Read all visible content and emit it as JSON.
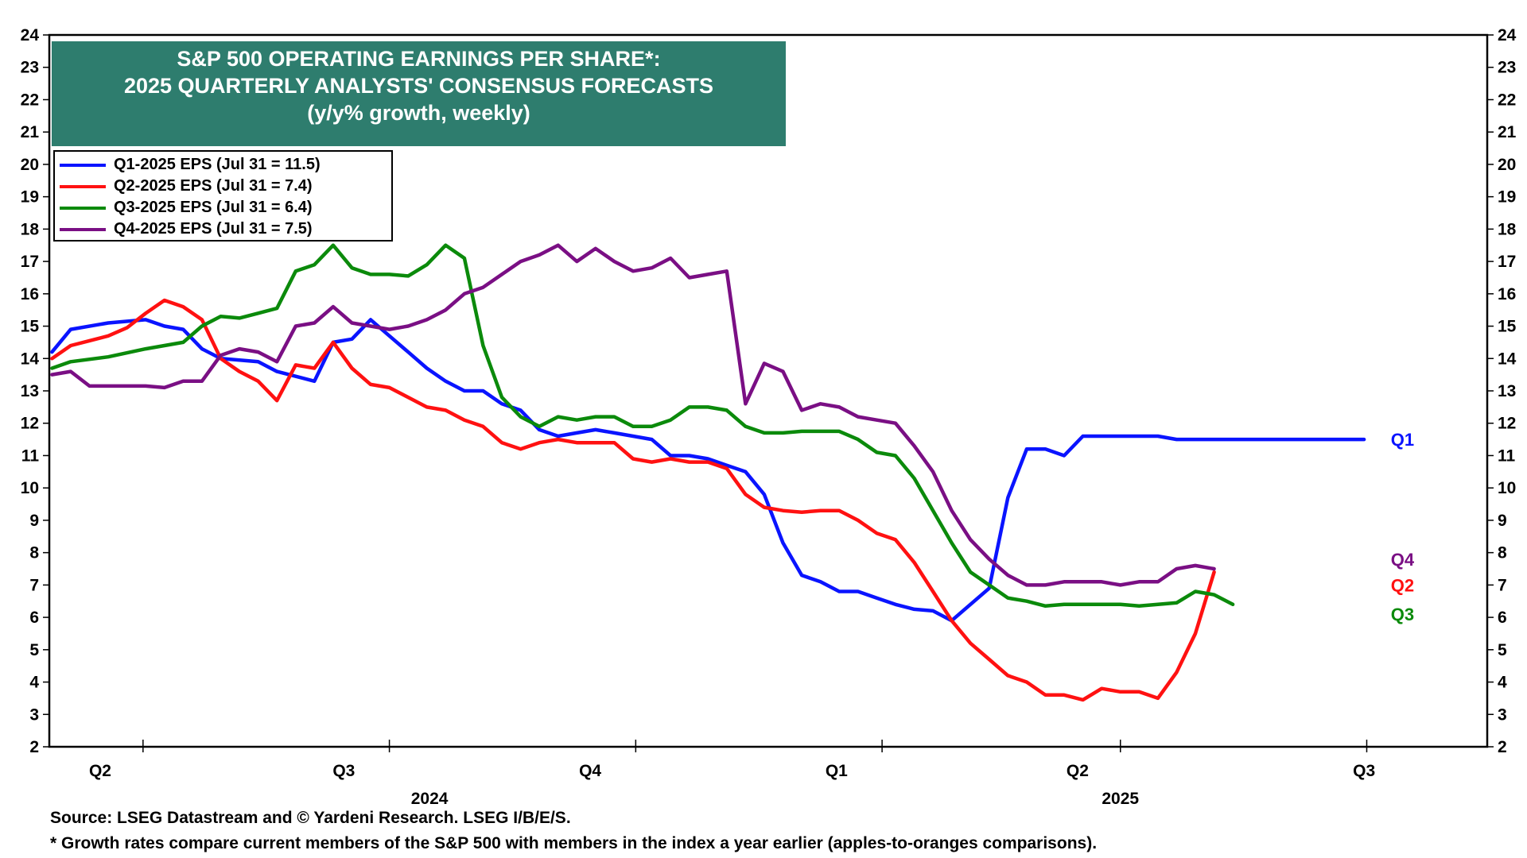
{
  "title": {
    "line1": "S&P 500 OPERATING EARNINGS PER SHARE*:",
    "line2": "2025 QUARTERLY ANALYSTS' CONSENSUS FORECASTS",
    "line3": "(y/y% growth, weekly)"
  },
  "footnotes": {
    "source": "Source: LSEG Datastream and © Yardeni Research. LSEG I/B/E/S.",
    "note": "* Growth rates compare current members of the S&P 500 with members in the index a year earlier (apples-to-oranges comparisons)."
  },
  "chart_data": {
    "type": "line",
    "ylim": [
      2,
      24
    ],
    "y_ticks": [
      2,
      3,
      4,
      5,
      6,
      7,
      8,
      9,
      10,
      11,
      12,
      13,
      14,
      15,
      16,
      17,
      18,
      19,
      20,
      21,
      22,
      23,
      24
    ],
    "xlim": [
      "2024-03-27",
      "2025-09-15"
    ],
    "x_tick_labels": [
      {
        "label": "Q2",
        "date": "2024-04-15"
      },
      {
        "label": "Q3",
        "date": "2024-07-15"
      },
      {
        "label": "Q4",
        "date": "2024-10-15"
      },
      {
        "label": "Q1",
        "date": "2025-01-15"
      },
      {
        "label": "Q2",
        "date": "2025-04-15"
      },
      {
        "label": "Q3",
        "date": "2025-07-31"
      }
    ],
    "year_labels": [
      {
        "label": "2024",
        "date": "2024-08-16"
      },
      {
        "label": "2025",
        "date": "2025-05-01"
      }
    ],
    "month_tick_dates": [
      "2024-05-01",
      "2024-08-01",
      "2024-11-01",
      "2025-02-01",
      "2025-05-01",
      "2025-08-01"
    ],
    "grid": false,
    "legend": "top-left",
    "colors": {
      "Q1": "#0a14ff",
      "Q2": "#ff1111",
      "Q3": "#0b8a0b",
      "Q4": "#7a0f84"
    },
    "series": [
      {
        "name": "Q1-2025 EPS (Jul 31 = 11.5)",
        "end_label": "Q1",
        "color": "#0a14ff",
        "points": [
          [
            "2024-03-28",
            14.2
          ],
          [
            "2024-04-04",
            14.9
          ],
          [
            "2024-04-18",
            15.1
          ],
          [
            "2024-05-02",
            15.2
          ],
          [
            "2024-05-09",
            15.0
          ],
          [
            "2024-05-16",
            14.9
          ],
          [
            "2024-05-23",
            14.3
          ],
          [
            "2024-05-30",
            14.0
          ],
          [
            "2024-06-13",
            13.9
          ],
          [
            "2024-06-20",
            13.6
          ],
          [
            "2024-07-04",
            13.3
          ],
          [
            "2024-07-11",
            14.5
          ],
          [
            "2024-07-18",
            14.6
          ],
          [
            "2024-07-25",
            15.2
          ],
          [
            "2024-08-01",
            14.7
          ],
          [
            "2024-08-08",
            14.2
          ],
          [
            "2024-08-15",
            13.7
          ],
          [
            "2024-08-22",
            13.3
          ],
          [
            "2024-08-29",
            13.0
          ],
          [
            "2024-09-05",
            13.0
          ],
          [
            "2024-09-12",
            12.6
          ],
          [
            "2024-09-19",
            12.4
          ],
          [
            "2024-09-26",
            11.8
          ],
          [
            "2024-10-03",
            11.6
          ],
          [
            "2024-10-10",
            11.7
          ],
          [
            "2024-10-17",
            11.8
          ],
          [
            "2024-10-24",
            11.7
          ],
          [
            "2024-10-31",
            11.6
          ],
          [
            "2024-11-07",
            11.5
          ],
          [
            "2024-11-14",
            11.0
          ],
          [
            "2024-11-21",
            11.0
          ],
          [
            "2024-11-28",
            10.9
          ],
          [
            "2024-12-05",
            10.7
          ],
          [
            "2024-12-12",
            10.5
          ],
          [
            "2024-12-19",
            9.8
          ],
          [
            "2024-12-26",
            8.3
          ],
          [
            "2025-01-02",
            7.3
          ],
          [
            "2025-01-09",
            7.1
          ],
          [
            "2025-01-16",
            6.8
          ],
          [
            "2025-01-23",
            6.8
          ],
          [
            "2025-01-30",
            6.6
          ],
          [
            "2025-02-06",
            6.4
          ],
          [
            "2025-02-13",
            6.25
          ],
          [
            "2025-02-20",
            6.2
          ],
          [
            "2025-02-27",
            5.9
          ],
          [
            "2025-03-06",
            6.4
          ],
          [
            "2025-03-13",
            6.9
          ],
          [
            "2025-03-20",
            9.7
          ],
          [
            "2025-03-27",
            11.2
          ],
          [
            "2025-04-03",
            11.2
          ],
          [
            "2025-04-10",
            11.0
          ],
          [
            "2025-04-17",
            11.6
          ],
          [
            "2025-04-24",
            11.6
          ],
          [
            "2025-05-01",
            11.6
          ],
          [
            "2025-05-08",
            11.6
          ],
          [
            "2025-05-15",
            11.6
          ],
          [
            "2025-05-22",
            11.5
          ],
          [
            "2025-05-29",
            11.5
          ],
          [
            "2025-06-05",
            11.5
          ],
          [
            "2025-06-12",
            11.5
          ],
          [
            "2025-06-19",
            11.5
          ],
          [
            "2025-06-26",
            11.5
          ],
          [
            "2025-07-03",
            11.5
          ],
          [
            "2025-07-10",
            11.5
          ],
          [
            "2025-07-17",
            11.5
          ],
          [
            "2025-07-24",
            11.5
          ],
          [
            "2025-07-31",
            11.5
          ]
        ]
      },
      {
        "name": "Q2-2025 EPS (Jul 31 = 7.4)",
        "end_label": "Q2",
        "color": "#ff1111",
        "points": [
          [
            "2024-03-28",
            14.0
          ],
          [
            "2024-04-04",
            14.4
          ],
          [
            "2024-04-11",
            14.55
          ],
          [
            "2024-04-18",
            14.7
          ],
          [
            "2024-04-25",
            14.95
          ],
          [
            "2024-05-02",
            15.4
          ],
          [
            "2024-05-09",
            15.8
          ],
          [
            "2024-05-16",
            15.6
          ],
          [
            "2024-05-23",
            15.2
          ],
          [
            "2024-05-30",
            14.0
          ],
          [
            "2024-06-06",
            13.6
          ],
          [
            "2024-06-13",
            13.3
          ],
          [
            "2024-06-20",
            12.7
          ],
          [
            "2024-06-27",
            13.8
          ],
          [
            "2024-07-04",
            13.7
          ],
          [
            "2024-07-11",
            14.5
          ],
          [
            "2024-07-18",
            13.7
          ],
          [
            "2024-07-25",
            13.2
          ],
          [
            "2024-08-01",
            13.1
          ],
          [
            "2024-08-08",
            12.8
          ],
          [
            "2024-08-15",
            12.5
          ],
          [
            "2024-08-22",
            12.4
          ],
          [
            "2024-08-29",
            12.1
          ],
          [
            "2024-09-05",
            11.9
          ],
          [
            "2024-09-12",
            11.4
          ],
          [
            "2024-09-19",
            11.2
          ],
          [
            "2024-09-26",
            11.4
          ],
          [
            "2024-10-03",
            11.5
          ],
          [
            "2024-10-10",
            11.4
          ],
          [
            "2024-10-17",
            11.4
          ],
          [
            "2024-10-24",
            11.4
          ],
          [
            "2024-10-31",
            10.9
          ],
          [
            "2024-11-07",
            10.8
          ],
          [
            "2024-11-14",
            10.9
          ],
          [
            "2024-11-21",
            10.8
          ],
          [
            "2024-11-28",
            10.8
          ],
          [
            "2024-12-05",
            10.6
          ],
          [
            "2024-12-12",
            9.8
          ],
          [
            "2024-12-19",
            9.4
          ],
          [
            "2024-12-26",
            9.3
          ],
          [
            "2025-01-02",
            9.25
          ],
          [
            "2025-01-09",
            9.3
          ],
          [
            "2025-01-16",
            9.3
          ],
          [
            "2025-01-23",
            9.0
          ],
          [
            "2025-01-30",
            8.6
          ],
          [
            "2025-02-06",
            8.4
          ],
          [
            "2025-02-13",
            7.7
          ],
          [
            "2025-02-20",
            6.8
          ],
          [
            "2025-02-27",
            5.9
          ],
          [
            "2025-03-06",
            5.2
          ],
          [
            "2025-03-13",
            4.7
          ],
          [
            "2025-03-20",
            4.2
          ],
          [
            "2025-03-27",
            4.0
          ],
          [
            "2025-04-03",
            3.6
          ],
          [
            "2025-04-10",
            3.6
          ],
          [
            "2025-04-17",
            3.45
          ],
          [
            "2025-04-24",
            3.8
          ],
          [
            "2025-05-01",
            3.7
          ],
          [
            "2025-05-08",
            3.7
          ],
          [
            "2025-05-15",
            3.5
          ],
          [
            "2025-05-22",
            4.3
          ],
          [
            "2025-05-29",
            5.5
          ],
          [
            "2025-06-05",
            7.4
          ]
        ]
      },
      {
        "name": "Q3-2025 EPS (Jul 31 = 6.4)",
        "end_label": "Q3",
        "color": "#0b8a0b",
        "points": [
          [
            "2024-03-28",
            13.7
          ],
          [
            "2024-04-04",
            13.9
          ],
          [
            "2024-04-18",
            14.05
          ],
          [
            "2024-05-02",
            14.3
          ],
          [
            "2024-05-16",
            14.5
          ],
          [
            "2024-05-23",
            15.0
          ],
          [
            "2024-05-30",
            15.3
          ],
          [
            "2024-06-06",
            15.25
          ],
          [
            "2024-06-13",
            15.4
          ],
          [
            "2024-06-20",
            15.55
          ],
          [
            "2024-06-27",
            16.7
          ],
          [
            "2024-07-04",
            16.9
          ],
          [
            "2024-07-11",
            17.5
          ],
          [
            "2024-07-18",
            16.8
          ],
          [
            "2024-07-25",
            16.6
          ],
          [
            "2024-08-01",
            16.6
          ],
          [
            "2024-08-08",
            16.55
          ],
          [
            "2024-08-15",
            16.9
          ],
          [
            "2024-08-22",
            17.5
          ],
          [
            "2024-08-29",
            17.1
          ],
          [
            "2024-09-05",
            14.4
          ],
          [
            "2024-09-12",
            12.8
          ],
          [
            "2024-09-19",
            12.2
          ],
          [
            "2024-09-26",
            11.9
          ],
          [
            "2024-10-03",
            12.2
          ],
          [
            "2024-10-10",
            12.1
          ],
          [
            "2024-10-17",
            12.2
          ],
          [
            "2024-10-24",
            12.2
          ],
          [
            "2024-10-31",
            11.9
          ],
          [
            "2024-11-07",
            11.9
          ],
          [
            "2024-11-14",
            12.1
          ],
          [
            "2024-11-21",
            12.5
          ],
          [
            "2024-11-28",
            12.5
          ],
          [
            "2024-12-05",
            12.4
          ],
          [
            "2024-12-12",
            11.9
          ],
          [
            "2024-12-19",
            11.7
          ],
          [
            "2024-12-26",
            11.7
          ],
          [
            "2025-01-02",
            11.75
          ],
          [
            "2025-01-09",
            11.75
          ],
          [
            "2025-01-16",
            11.75
          ],
          [
            "2025-01-23",
            11.5
          ],
          [
            "2025-01-30",
            11.1
          ],
          [
            "2025-02-06",
            11.0
          ],
          [
            "2025-02-13",
            10.3
          ],
          [
            "2025-02-20",
            9.3
          ],
          [
            "2025-02-27",
            8.3
          ],
          [
            "2025-03-06",
            7.4
          ],
          [
            "2025-03-13",
            7.0
          ],
          [
            "2025-03-20",
            6.6
          ],
          [
            "2025-03-27",
            6.5
          ],
          [
            "2025-04-03",
            6.35
          ],
          [
            "2025-04-10",
            6.4
          ],
          [
            "2025-04-17",
            6.4
          ],
          [
            "2025-04-24",
            6.4
          ],
          [
            "2025-05-01",
            6.4
          ],
          [
            "2025-05-08",
            6.35
          ],
          [
            "2025-05-15",
            6.4
          ],
          [
            "2025-05-22",
            6.45
          ],
          [
            "2025-05-29",
            6.8
          ],
          [
            "2025-06-05",
            6.7
          ],
          [
            "2025-06-12",
            6.4
          ]
        ]
      },
      {
        "name": "Q4-2025 EPS (Jul 31 = 7.5)",
        "end_label": "Q4",
        "color": "#7a0f84",
        "points": [
          [
            "2024-03-28",
            13.5
          ],
          [
            "2024-04-04",
            13.6
          ],
          [
            "2024-04-11",
            13.15
          ],
          [
            "2024-04-18",
            13.15
          ],
          [
            "2024-05-02",
            13.15
          ],
          [
            "2024-05-09",
            13.1
          ],
          [
            "2024-05-16",
            13.3
          ],
          [
            "2024-05-23",
            13.3
          ],
          [
            "2024-05-30",
            14.1
          ],
          [
            "2024-06-06",
            14.3
          ],
          [
            "2024-06-13",
            14.2
          ],
          [
            "2024-06-20",
            13.9
          ],
          [
            "2024-06-27",
            15.0
          ],
          [
            "2024-07-04",
            15.1
          ],
          [
            "2024-07-11",
            15.6
          ],
          [
            "2024-07-18",
            15.1
          ],
          [
            "2024-07-25",
            15.0
          ],
          [
            "2024-08-01",
            14.9
          ],
          [
            "2024-08-08",
            15.0
          ],
          [
            "2024-08-15",
            15.2
          ],
          [
            "2024-08-22",
            15.5
          ],
          [
            "2024-08-29",
            16.0
          ],
          [
            "2024-09-05",
            16.2
          ],
          [
            "2024-09-12",
            16.6
          ],
          [
            "2024-09-19",
            17.0
          ],
          [
            "2024-09-26",
            17.2
          ],
          [
            "2024-10-03",
            17.5
          ],
          [
            "2024-10-10",
            17.0
          ],
          [
            "2024-10-17",
            17.4
          ],
          [
            "2024-10-24",
            17.0
          ],
          [
            "2024-10-31",
            16.7
          ],
          [
            "2024-11-07",
            16.8
          ],
          [
            "2024-11-14",
            17.1
          ],
          [
            "2024-11-21",
            16.5
          ],
          [
            "2024-11-28",
            16.6
          ],
          [
            "2024-12-05",
            16.7
          ],
          [
            "2024-12-12",
            12.6
          ],
          [
            "2024-12-19",
            13.85
          ],
          [
            "2024-12-26",
            13.6
          ],
          [
            "2025-01-02",
            12.4
          ],
          [
            "2025-01-09",
            12.6
          ],
          [
            "2025-01-16",
            12.5
          ],
          [
            "2025-01-23",
            12.2
          ],
          [
            "2025-01-30",
            12.1
          ],
          [
            "2025-02-06",
            12.0
          ],
          [
            "2025-02-13",
            11.3
          ],
          [
            "2025-02-20",
            10.5
          ],
          [
            "2025-02-27",
            9.3
          ],
          [
            "2025-03-06",
            8.4
          ],
          [
            "2025-03-13",
            7.8
          ],
          [
            "2025-03-20",
            7.3
          ],
          [
            "2025-03-27",
            7.0
          ],
          [
            "2025-04-03",
            7.0
          ],
          [
            "2025-04-10",
            7.1
          ],
          [
            "2025-04-17",
            7.1
          ],
          [
            "2025-04-24",
            7.1
          ],
          [
            "2025-05-01",
            7.0
          ],
          [
            "2025-05-08",
            7.1
          ],
          [
            "2025-05-15",
            7.1
          ],
          [
            "2025-05-22",
            7.5
          ],
          [
            "2025-05-29",
            7.6
          ],
          [
            "2025-06-05",
            7.5
          ]
        ]
      }
    ]
  }
}
